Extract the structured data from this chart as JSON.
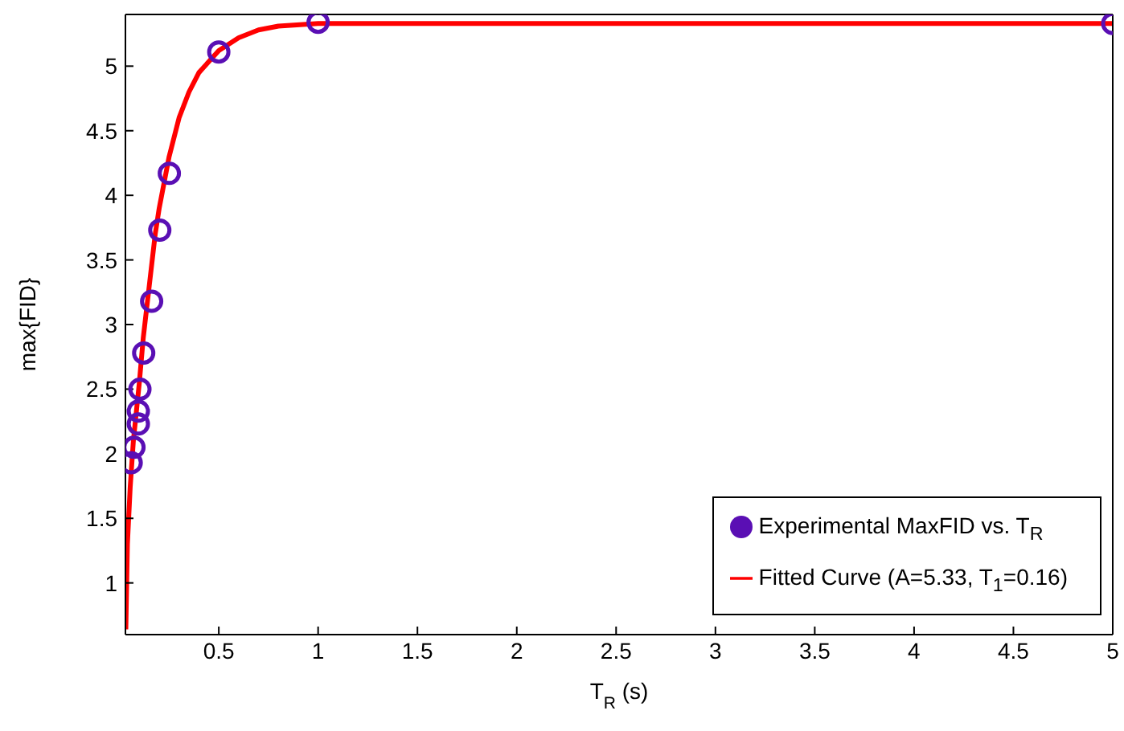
{
  "chart_data": {
    "type": "scatter",
    "xlabel": "T$_{R}$ (s)",
    "ylabel": "max{FID}",
    "xlim": [
      0.03,
      5
    ],
    "xticks": [
      0.5,
      1,
      1.5,
      2,
      2.5,
      3,
      3.5,
      4,
      4.5,
      5
    ],
    "ylim": [
      0.6,
      5.4
    ],
    "yticks": [
      1,
      1.5,
      2,
      2.5,
      3,
      3.5,
      4,
      4.5,
      5
    ],
    "grid": false,
    "legend": "bottom right",
    "series": [
      {
        "name": "Experimental MaxFID vs. T$_{R}$",
        "marker": "circle",
        "color": "#5a0fb4",
        "x": [
          0.059,
          0.073,
          0.095,
          0.095,
          0.103,
          0.122,
          0.162,
          0.203,
          0.251,
          0.5,
          1.0,
          5.0
        ],
        "values": [
          1.93,
          2.05,
          2.23,
          2.33,
          2.5,
          2.78,
          3.18,
          3.73,
          4.17,
          5.11,
          5.34,
          5.33
        ]
      },
      {
        "name": "Fitted Curve (A=5.33, T$_{1}$=0.16)",
        "type": "line",
        "marker": "none",
        "line_style": "solid",
        "color": "#ff0000",
        "x": [
          0.032,
          0.04,
          0.054,
          0.07,
          0.08,
          0.1,
          0.12,
          0.15,
          0.18,
          0.2,
          0.25,
          0.3,
          0.35,
          0.4,
          0.5,
          0.6,
          0.7,
          0.8,
          1.0,
          5.0
        ],
        "values": [
          0.64,
          1.3,
          1.74,
          2.1,
          2.25,
          2.55,
          2.9,
          3.3,
          3.7,
          3.9,
          4.3,
          4.6,
          4.8,
          4.95,
          5.12,
          5.22,
          5.28,
          5.31,
          5.33,
          5.33
        ]
      }
    ]
  }
}
